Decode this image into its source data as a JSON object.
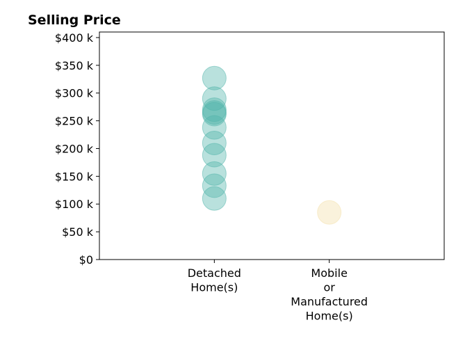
{
  "chart_data": {
    "type": "scatter",
    "title": "Selling Price",
    "xlabel": "",
    "ylabel": "",
    "categories": [
      [
        "Detached",
        "Home(s)"
      ],
      [
        "Mobile",
        "or",
        "Manufactured",
        "Home(s)"
      ]
    ],
    "ylim": [
      0,
      410000
    ],
    "yticks": [
      0,
      50000,
      100000,
      150000,
      200000,
      250000,
      300000,
      350000,
      400000
    ],
    "ytick_labels": [
      "$0",
      "$50 k",
      "$100 k",
      "$150 k",
      "$200 k",
      "$250 k",
      "$300 k",
      "$350 k",
      "$400 k"
    ],
    "grid": false,
    "series": [
      {
        "category_index": 0,
        "color": "#4fb3a9",
        "values": [
          327000,
          290000,
          270000,
          265000,
          262000,
          238000,
          210000,
          188000,
          155000,
          133000,
          110000
        ]
      },
      {
        "category_index": 1,
        "color": "#f3dfa8",
        "values": [
          85000
        ]
      }
    ]
  }
}
